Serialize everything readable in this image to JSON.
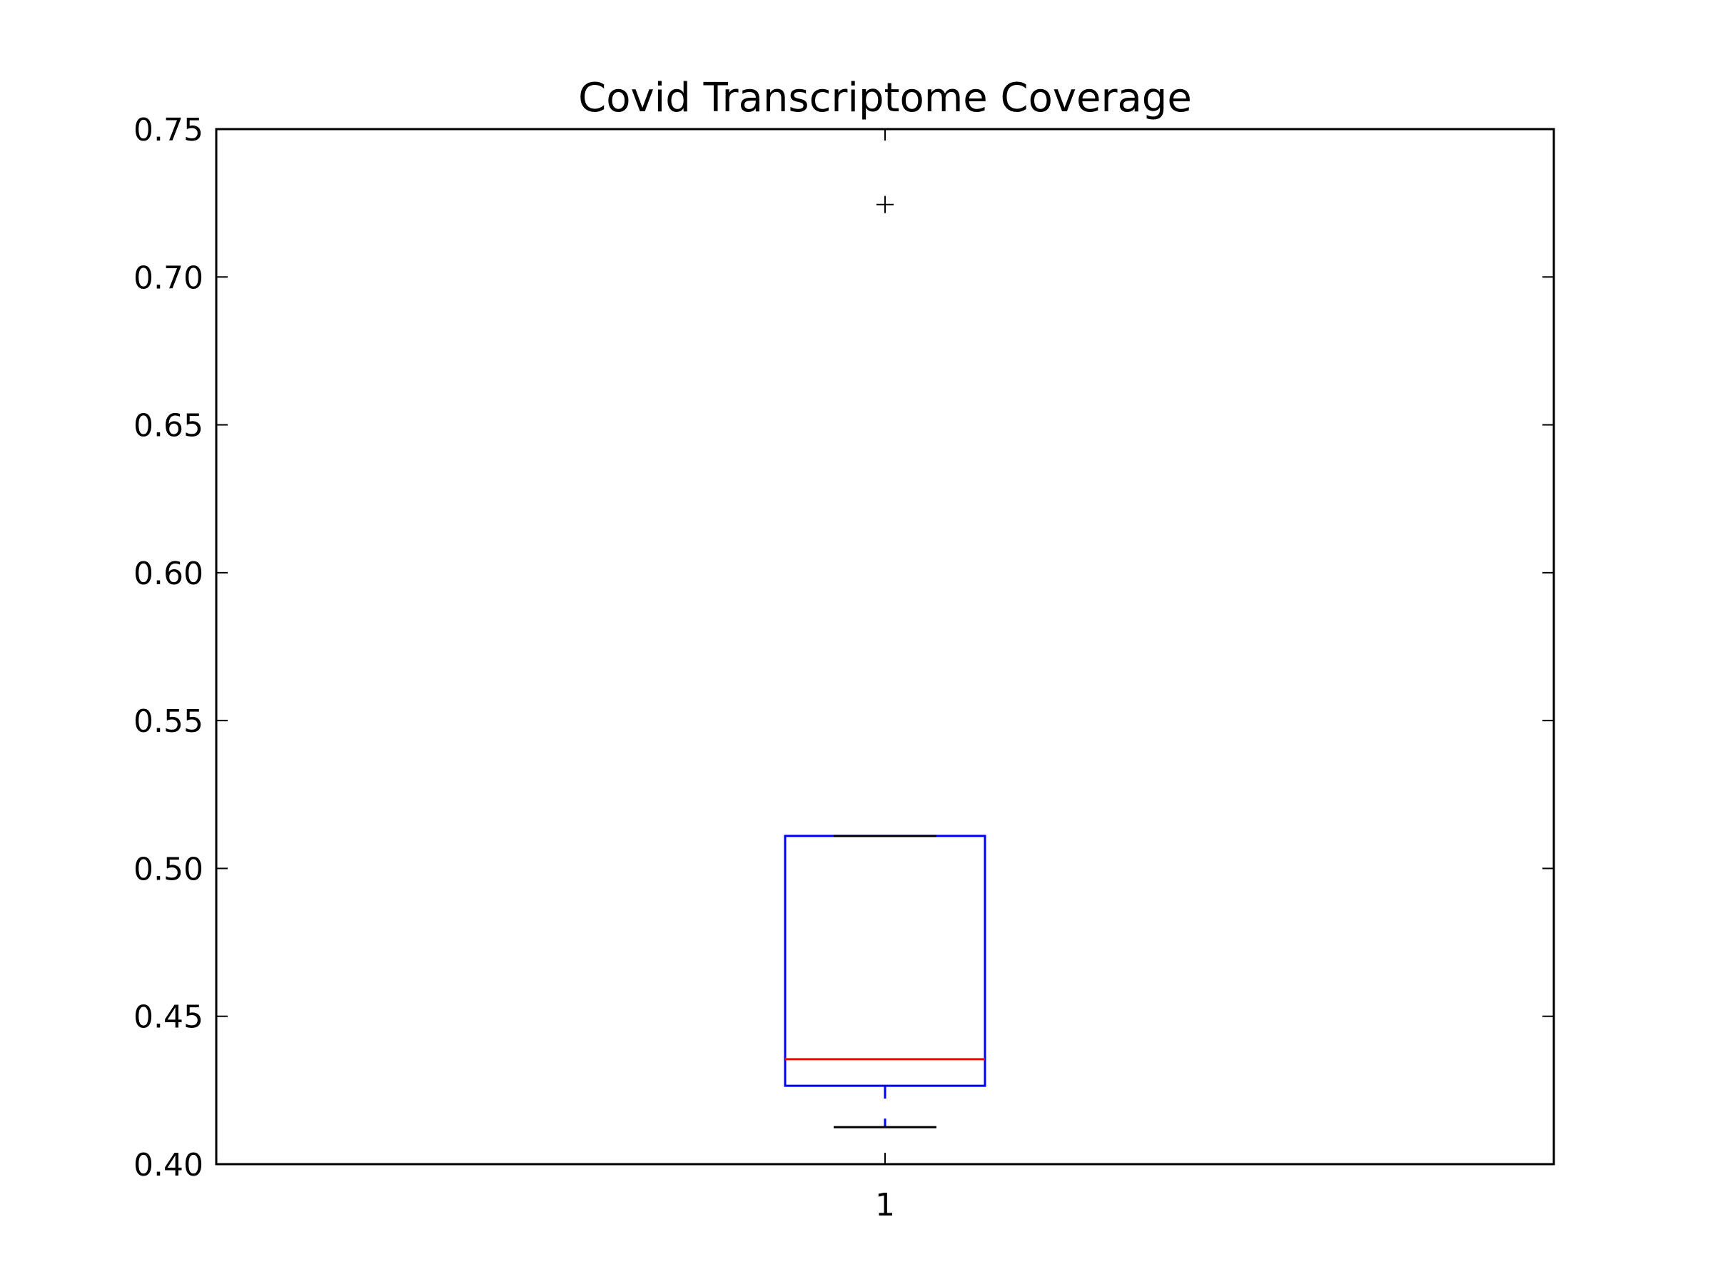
{
  "chart_data": {
    "type": "box",
    "title": "Covid Transcriptome Coverage",
    "xlabel": "",
    "ylabel": "",
    "categories": [
      "1"
    ],
    "ylim": [
      0.4,
      0.75
    ],
    "yticks": [
      0.4,
      0.45,
      0.5,
      0.55,
      0.6,
      0.65,
      0.7,
      0.75
    ],
    "ytick_labels": [
      "0.40",
      "0.45",
      "0.50",
      "0.55",
      "0.60",
      "0.65",
      "0.70",
      "0.75"
    ],
    "grid": false,
    "legend": "none",
    "boxes": [
      {
        "category": "1",
        "whisker_low": 0.4125,
        "q1": 0.4265,
        "median": 0.4355,
        "q3": 0.511,
        "whisker_high": 0.511,
        "outliers": [
          0.7245
        ]
      }
    ],
    "colors": {
      "box": "#0000ff",
      "median": "#ff0000",
      "whisker": "#0000ff",
      "cap": "#000000",
      "outlier": "#000000",
      "axes": "#000000"
    }
  }
}
